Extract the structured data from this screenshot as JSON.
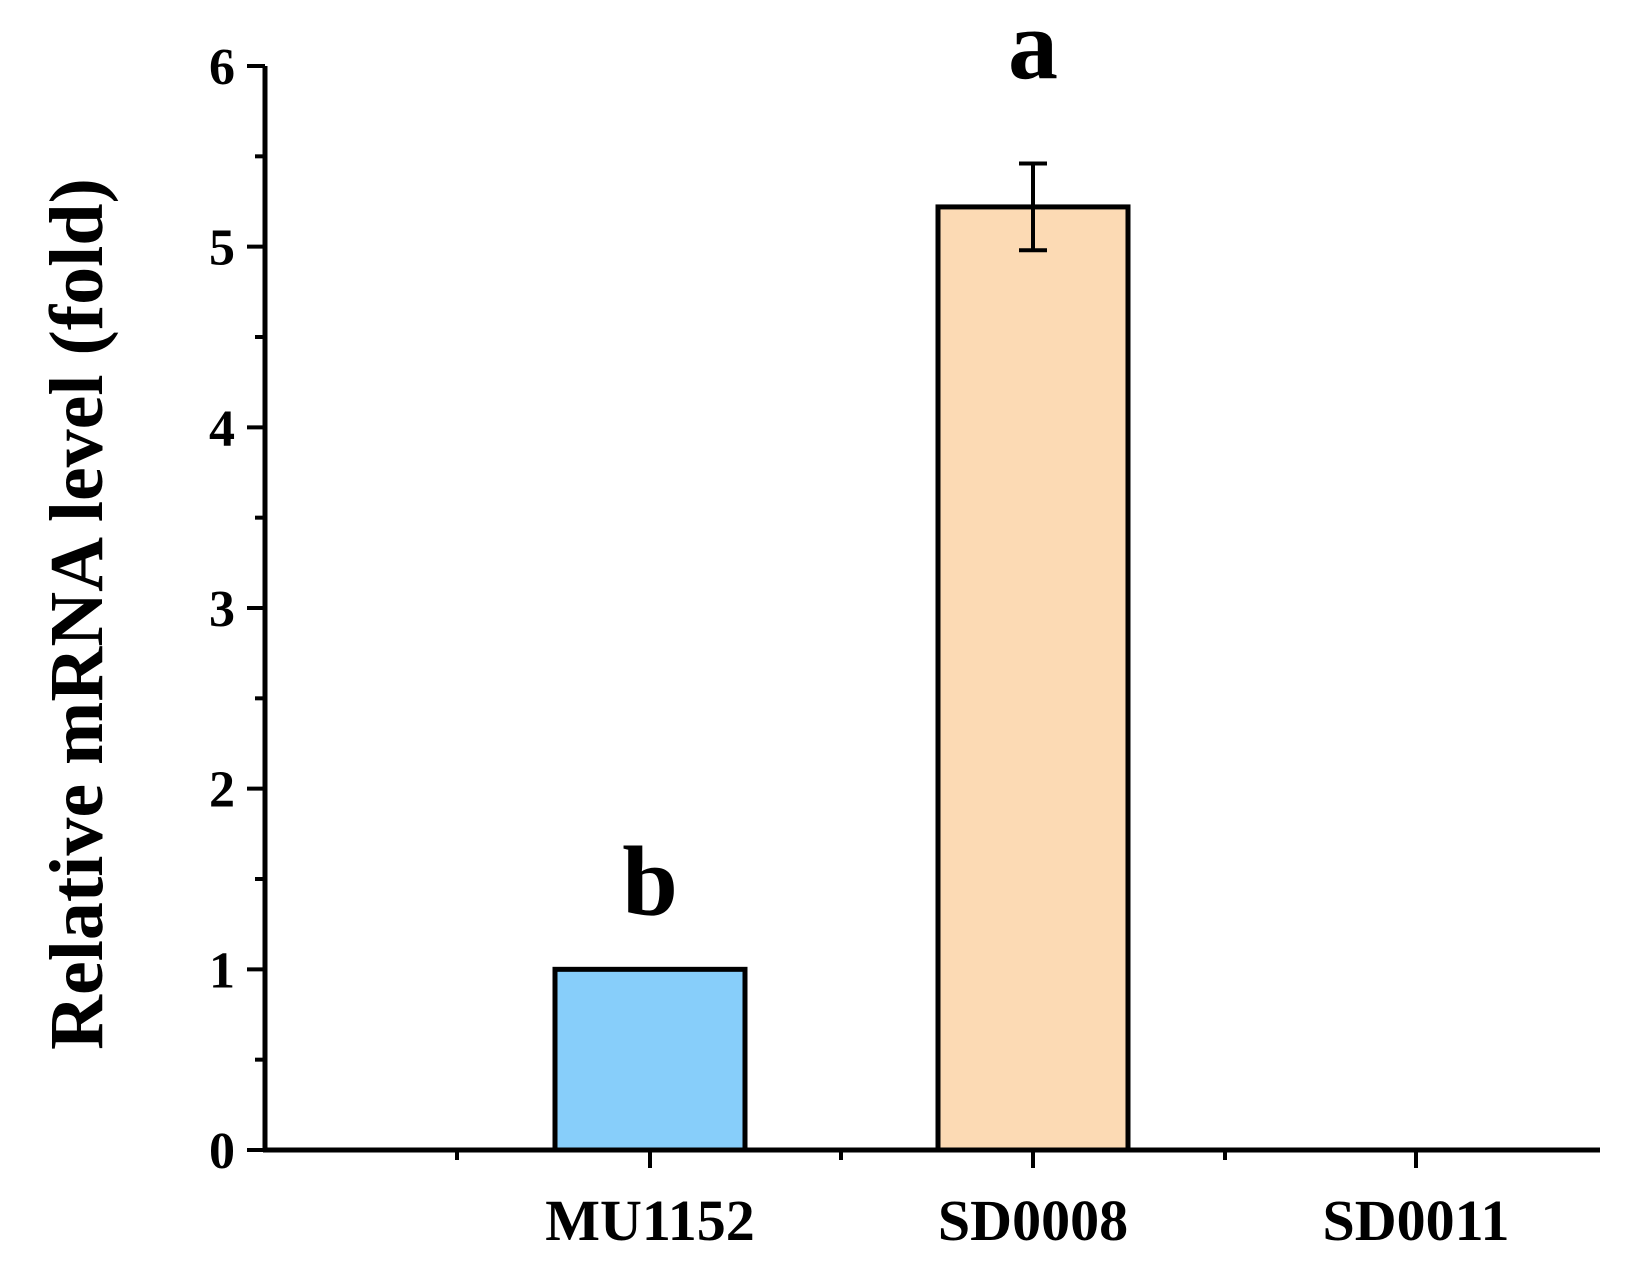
{
  "chart_data": {
    "type": "bar",
    "title": "",
    "xlabel": "",
    "ylabel": "Relative mRNA level (fold)",
    "ylim": [
      0,
      6
    ],
    "yticks": [
      "0",
      "1",
      "2",
      "3",
      "4",
      "5",
      "6"
    ],
    "categories": [
      "MU1152",
      "SD0008",
      "SD0011"
    ],
    "values": [
      1.0,
      5.22,
      0
    ],
    "errors": [
      null,
      0.24,
      null
    ],
    "significance_labels": [
      "b",
      "a",
      ""
    ],
    "colors": [
      "#87CEFA",
      "#FCDAB4",
      "#ffffff"
    ],
    "grid": false,
    "legend": "none"
  }
}
